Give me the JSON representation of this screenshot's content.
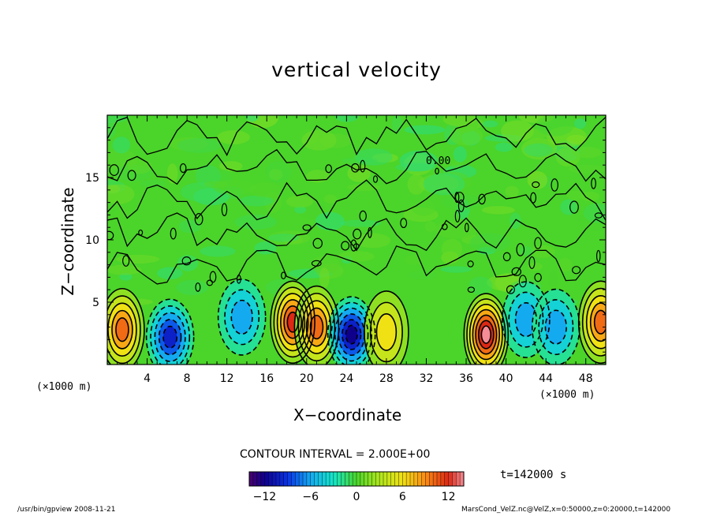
{
  "chart_data": {
    "type": "heatmap",
    "title": "vertical velocity",
    "xlabel": "X−coordinate",
    "ylabel": "Z−coordinate",
    "x_unit_left": "(×1000 m)",
    "x_unit_right": "(×1000 m)",
    "xlim": [
      0,
      50
    ],
    "ylim": [
      0,
      20
    ],
    "xticks": [
      "4",
      "8",
      "12",
      "16",
      "20",
      "24",
      "28",
      "32",
      "36",
      "40",
      "44",
      "48"
    ],
    "yticks": [
      "5",
      "10",
      "15"
    ],
    "contour_interval": "CONTOUR INTERVAL = 2.000E+00",
    "contour_label": "0.00",
    "time": "t=142000 s",
    "colorbar": {
      "range": [
        -14,
        14
      ],
      "ticks": [
        "−12",
        "−6",
        "0",
        "6",
        "12"
      ]
    },
    "cells": [
      {
        "x": 1.5,
        "z": 2.8,
        "w": 9
      },
      {
        "x": 6.3,
        "z": 2.2,
        "w": -10
      },
      {
        "x": 13.5,
        "z": 3.8,
        "w": -6
      },
      {
        "x": 18.6,
        "z": 3.4,
        "w": 12
      },
      {
        "x": 21.0,
        "z": 3.0,
        "w": 10
      },
      {
        "x": 24.5,
        "z": 2.4,
        "w": -11
      },
      {
        "x": 28.0,
        "z": 2.6,
        "w": 5
      },
      {
        "x": 38.0,
        "z": 2.4,
        "w": 13
      },
      {
        "x": 42.0,
        "z": 3.6,
        "w": -6
      },
      {
        "x": 45.0,
        "z": 3.0,
        "w": -5
      },
      {
        "x": 49.5,
        "z": 3.4,
        "w": 10
      }
    ]
  },
  "footer": {
    "left": "/usr/bin/gpview   2008-11-21",
    "right": "MarsCond_VelZ.nc@VelZ,x=0:50000,z=0:20000,t=142000"
  }
}
